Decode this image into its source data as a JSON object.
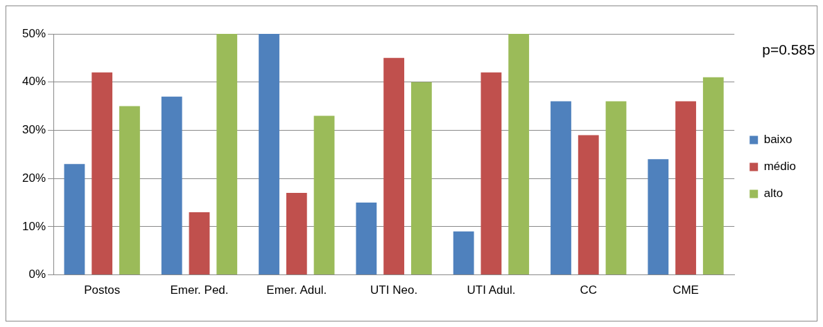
{
  "chart_data": {
    "type": "bar",
    "categories": [
      "Postos",
      "Emer. Ped.",
      "Emer. Adul.",
      "UTI Neo.",
      "UTI Adul.",
      "CC",
      "CME"
    ],
    "series": [
      {
        "name": "baixo",
        "color": "#4f81bd",
        "values": [
          23,
          37,
          50,
          15,
          9,
          36,
          24
        ]
      },
      {
        "name": "médio",
        "color": "#c0504d",
        "values": [
          42,
          13,
          17,
          45,
          42,
          29,
          36
        ]
      },
      {
        "name": "alto",
        "color": "#9bbb59",
        "values": [
          35,
          50,
          33,
          40,
          50,
          36,
          41
        ]
      }
    ],
    "ylim": [
      0,
      50
    ],
    "yticks": [
      {
        "value": 0,
        "label": "0%"
      },
      {
        "value": 10,
        "label": "10%"
      },
      {
        "value": 20,
        "label": "20%"
      },
      {
        "value": 30,
        "label": "30%"
      },
      {
        "value": 40,
        "label": "40%"
      },
      {
        "value": 50,
        "label": "50%"
      }
    ],
    "grid": "y",
    "legend": "right",
    "annotations": [
      "p=0.585"
    ]
  }
}
